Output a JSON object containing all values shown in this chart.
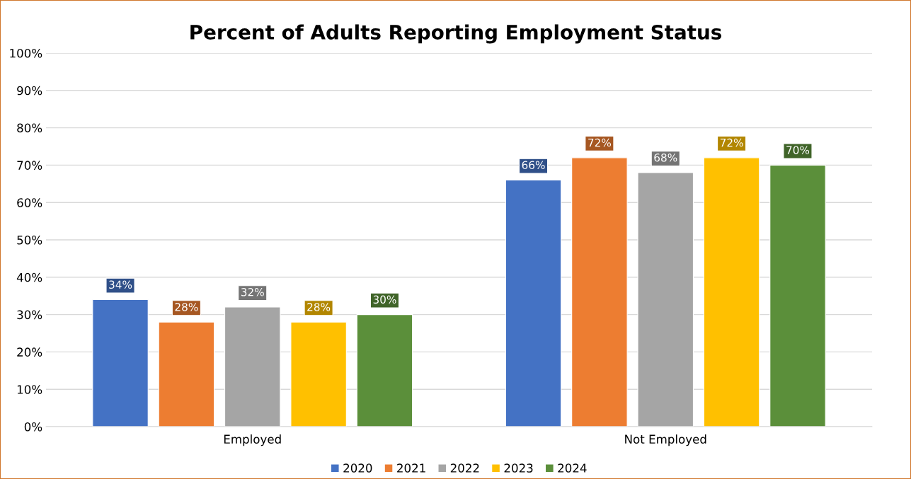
{
  "chart_data": {
    "type": "bar",
    "title": "Percent of Adults Reporting Employment Status",
    "categories": [
      "Employed",
      "Not Employed"
    ],
    "series": [
      {
        "name": "2020",
        "color": "#4472c4",
        "values": [
          34,
          66
        ],
        "value_labels": [
          "34%",
          "66%"
        ]
      },
      {
        "name": "2021",
        "color": "#ed7d31",
        "values": [
          28,
          72
        ],
        "value_labels": [
          "28%",
          "72%"
        ]
      },
      {
        "name": "2022",
        "color": "#a5a5a5",
        "values": [
          32,
          68
        ],
        "value_labels": [
          "32%",
          "68%"
        ]
      },
      {
        "name": "2023",
        "color": "#ffc000",
        "values": [
          28,
          72
        ],
        "value_labels": [
          "28%",
          "72%"
        ]
      },
      {
        "name": "2024",
        "color": "#5b8f3a",
        "values": [
          30,
          70
        ],
        "value_labels": [
          "30%",
          "70%"
        ]
      }
    ],
    "ylim": [
      0,
      100
    ],
    "yticks": [
      {
        "value": 0,
        "label": "0%"
      },
      {
        "value": 10,
        "label": "10%"
      },
      {
        "value": 20,
        "label": "20%"
      },
      {
        "value": 30,
        "label": "30%"
      },
      {
        "value": 40,
        "label": "40%"
      },
      {
        "value": 50,
        "label": "50%"
      },
      {
        "value": 60,
        "label": "60%"
      },
      {
        "value": 70,
        "label": "70%"
      },
      {
        "value": 80,
        "label": "80%"
      },
      {
        "value": 90,
        "label": "90%"
      },
      {
        "value": 100,
        "label": "100%"
      }
    ],
    "grid": "y",
    "legend": "bottom"
  }
}
